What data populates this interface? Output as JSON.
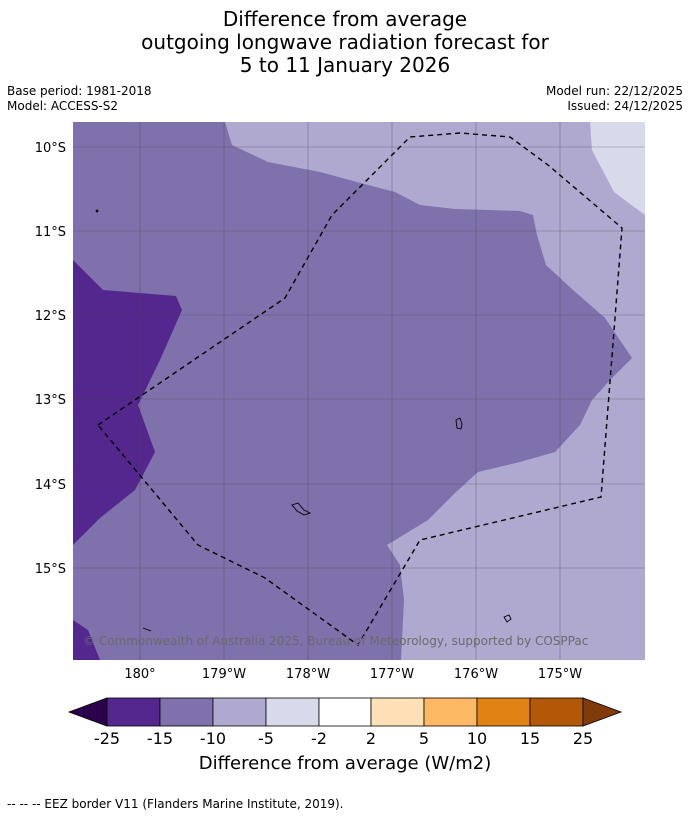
{
  "title": {
    "line1": "Difference from average",
    "line2": "outgoing longwave radiation forecast for",
    "line3": "5 to 11 January 2026"
  },
  "meta": {
    "base_period": "Base period: 1981-2018",
    "model": "Model: ACCESS-S2",
    "model_run": "Model run: 22/12/2025",
    "issued": "Issued: 24/12/2025"
  },
  "map": {
    "lat_labels": [
      "10°S",
      "11°S",
      "12°S",
      "13°S",
      "14°S",
      "15°S"
    ],
    "lon_labels": [
      "180°",
      "179°W",
      "178°W",
      "177°W",
      "176°W",
      "175°W"
    ],
    "copyright": "© Commonwealth of Australia 2025, Bureau of Meteorology, supported by COSPPac",
    "colors": {
      "minus_25_15": "#54278f",
      "minus_15_10": "#7f71ab",
      "minus_10_5": "#afa9d0",
      "minus_5_2": "#d9d9ec",
      "neutral": "#ffffff",
      "plus_2_5": "#fee0b6",
      "plus_5_10": "#fdb863",
      "plus_10_15": "#e08214",
      "plus_15_25": "#b35806",
      "below_minus_25": "#2d004b",
      "above_25": "#7f3b08"
    }
  },
  "colorbar": {
    "ticks": [
      "-25",
      "-15",
      "-10",
      "-5",
      "-2",
      "2",
      "5",
      "10",
      "15",
      "25"
    ],
    "label": "Difference from average (W/m2)"
  },
  "footer": "-- -- -- EEZ border V11 (Flanders Marine Institute, 2019)."
}
